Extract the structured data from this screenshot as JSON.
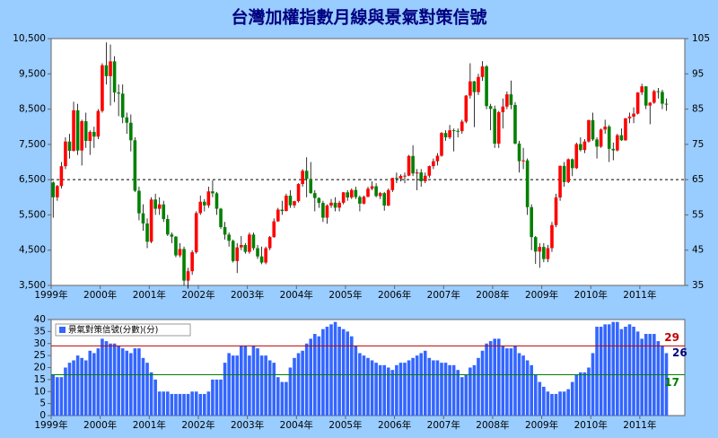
{
  "chart_data": [
    {
      "type": "candlestick",
      "title": "台灣加權指數月線與景氣對策信號",
      "up_color": "#ff0000",
      "down_color": "#008000",
      "x_labels": [
        "1999年",
        "2000年",
        "2001年",
        "2002年",
        "2003年",
        "2004年",
        "2005年",
        "2006年",
        "2007年",
        "2008年",
        "2009年",
        "2010年",
        "2011年"
      ],
      "ylim": [
        3500,
        10500
      ],
      "yticks": [
        {
          "value": 3500,
          "label": "3,500"
        },
        {
          "value": 4500,
          "label": "4,500"
        },
        {
          "value": 5500,
          "label": "5,500"
        },
        {
          "value": 6500,
          "label": "6,500"
        },
        {
          "value": 7500,
          "label": "7,500"
        },
        {
          "value": 8500,
          "label": "8,500"
        },
        {
          "value": 9500,
          "label": "9,500"
        },
        {
          "value": 10500,
          "label": "10,500"
        }
      ],
      "y2lim": [
        35,
        105
      ],
      "y2ticks": [
        35,
        45,
        55,
        65,
        75,
        85,
        95,
        105
      ],
      "hline": 6500,
      "open": [
        6418,
        5999,
        6318,
        6881,
        7581,
        7316,
        8467,
        7326,
        8157,
        7598,
        7854,
        7720,
        8448,
        9744,
        9435,
        9854,
        8970,
        8939,
        8265,
        8114,
        7616,
        6185,
        5544,
        5256,
        4739,
        5936,
        5674,
        5797,
        5382,
        4944,
        4883,
        4352,
        4533,
        3636,
        3903,
        4441,
        5551,
        5873,
        5770,
        6167,
        6113,
        5675,
        5153,
        4941,
        4764,
        4191,
        4579,
        4646,
        4452,
        4942,
        4556,
        4322,
        4148,
        4556,
        4872,
        5318,
        5650,
        5611,
        6045,
        5772,
        5890,
        6375,
        6751,
        6522,
        6118,
        5978,
        5840,
        5420,
        5765,
        5846,
        5705,
        5845,
        6140,
        5994,
        6207,
        6006,
        5819,
        6012,
        6242,
        6312,
        6034,
        6118,
        5764,
        6203,
        6548,
        6532,
        6605,
        6613,
        7171,
        6675,
        6704,
        6456,
        6611,
        6883,
        7021,
        7178,
        7823,
        7699,
        7901,
        7884,
        7875,
        8145,
        8883,
        9287,
        8982,
        9411,
        9711,
        8586,
        8506,
        7521,
        8412,
        8572,
        8919,
        8619,
        7523,
        7024,
        7046,
        5719,
        4870,
        4460,
        4591,
        4248,
        4557,
        5211,
        5993,
        6890,
        6432,
        7078,
        6826,
        7509,
        7340,
        7582,
        8188,
        7640,
        7436,
        7920,
        8004,
        7374,
        7329,
        7760,
        7616,
        8238,
        8287,
        8372,
        8973,
        9145,
        8600,
        8683,
        9008,
        8988,
        8653
      ],
      "high": [
        6450,
        6350,
        7000,
        7700,
        7800,
        8710,
        8650,
        8200,
        8400,
        7900,
        8000,
        8500,
        9800,
        10393,
        10330,
        10000,
        9200,
        9200,
        8400,
        8350,
        7700,
        6300,
        5800,
        5400,
        6000,
        6100,
        6000,
        5900,
        5500,
        5000,
        4900,
        4700,
        4600,
        4000,
        4500,
        5600,
        6050,
        5950,
        6300,
        6480,
        6150,
        5700,
        5300,
        5000,
        4800,
        4700,
        4900,
        4700,
        5000,
        5000,
        4650,
        4600,
        4600,
        4900,
        5400,
        5700,
        5900,
        6100,
        6200,
        5900,
        6400,
        6800,
        7135,
        7000,
        6200,
        6000,
        5900,
        5800,
        5950,
        6000,
        5900,
        6150,
        6200,
        6250,
        6300,
        6050,
        6050,
        6300,
        6450,
        6400,
        6150,
        6150,
        6250,
        6550,
        6700,
        6650,
        6700,
        7200,
        7476,
        6800,
        6800,
        6700,
        6900,
        7100,
        7250,
        7850,
        7900,
        8050,
        7950,
        7950,
        8200,
        8900,
        9800,
        9300,
        9500,
        9859,
        9750,
        8650,
        8600,
        8450,
        8800,
        9000,
        9309,
        8700,
        7600,
        7400,
        7100,
        5800,
        4900,
        4700,
        4700,
        4650,
        5300,
        6100,
        6900,
        7000,
        7100,
        7100,
        7550,
        7700,
        7650,
        8200,
        8400,
        7700,
        7950,
        8200,
        8050,
        7550,
        7800,
        7950,
        8250,
        8400,
        8550,
        8980,
        9220,
        9150,
        8700,
        9050,
        9100,
        9050,
        8800
      ],
      "low": [
        5420,
        5900,
        6250,
        6800,
        7100,
        7300,
        7200,
        6900,
        7400,
        7200,
        7400,
        7650,
        8400,
        9200,
        8600,
        8700,
        8300,
        8100,
        7800,
        7300,
        6150,
        5350,
        5050,
        4555,
        4700,
        5500,
        5500,
        5300,
        4900,
        4700,
        4300,
        4300,
        3500,
        3411,
        3800,
        4400,
        5500,
        5600,
        5700,
        6000,
        5500,
        5100,
        4800,
        4600,
        4150,
        3850,
        4500,
        4400,
        4400,
        4500,
        4250,
        4100,
        4100,
        4500,
        4850,
        5300,
        5500,
        5600,
        5700,
        5700,
        5850,
        6300,
        6000,
        6100,
        5600,
        5700,
        5300,
        5250,
        5700,
        5600,
        5600,
        5800,
        5900,
        5950,
        5950,
        5600,
        5800,
        6000,
        6200,
        6000,
        5950,
        5620,
        5750,
        6150,
        6400,
        6450,
        6400,
        6600,
        6600,
        6200,
        6300,
        6400,
        6550,
        6800,
        6900,
        7150,
        7600,
        7650,
        7300,
        7700,
        7800,
        8100,
        8800,
        7990,
        8900,
        9300,
        8500,
        7900,
        7400,
        7400,
        7950,
        8500,
        8500,
        7500,
        6700,
        6800,
        5500,
        4500,
        4110,
        4000,
        4160,
        4160,
        4450,
        5150,
        5900,
        6300,
        6400,
        6600,
        6800,
        7300,
        7250,
        7550,
        7600,
        7100,
        7400,
        7800,
        7000,
        7050,
        7300,
        7600,
        7600,
        8100,
        8100,
        8350,
        8900,
        8500,
        8070,
        8650,
        8800,
        8500,
        8450
      ],
      "close": [
        5999,
        6318,
        6881,
        7581,
        7316,
        8467,
        7326,
        8157,
        7598,
        7854,
        7720,
        8448,
        9744,
        9435,
        9854,
        8970,
        8939,
        8265,
        8114,
        7616,
        6185,
        5544,
        5256,
        4739,
        5936,
        5674,
        5797,
        5382,
        4944,
        4883,
        4352,
        4533,
        3636,
        3903,
        4441,
        5551,
        5873,
        5770,
        6167,
        6113,
        5675,
        5153,
        4941,
        4764,
        4191,
        4579,
        4646,
        4452,
        4942,
        4556,
        4322,
        4148,
        4556,
        4872,
        5318,
        5650,
        5611,
        6045,
        5772,
        5890,
        6375,
        6751,
        6522,
        6118,
        5978,
        5840,
        5420,
        5765,
        5846,
        5705,
        5845,
        6140,
        5994,
        6207,
        6006,
        5819,
        6012,
        6242,
        6312,
        6034,
        6118,
        5764,
        6203,
        6548,
        6532,
        6605,
        6613,
        7171,
        6675,
        6704,
        6456,
        6611,
        6883,
        7021,
        7178,
        7823,
        7699,
        7901,
        7884,
        7875,
        8145,
        8883,
        9287,
        8982,
        9411,
        9711,
        8586,
        8506,
        7521,
        8412,
        8572,
        8919,
        8619,
        7523,
        7024,
        7046,
        5719,
        4870,
        4460,
        4591,
        4248,
        4557,
        5211,
        5993,
        6890,
        6432,
        7078,
        6826,
        7509,
        7340,
        7582,
        8188,
        7640,
        7436,
        7920,
        8004,
        7374,
        7329,
        7760,
        7616,
        8238,
        8287,
        8372,
        8973,
        9145,
        8600,
        8683,
        9008,
        8988,
        8653,
        8644
      ]
    },
    {
      "type": "bar",
      "x_labels": [
        "1999年",
        "2000年",
        "2001年",
        "2002年",
        "2003年",
        "2004年",
        "2005年",
        "2006年",
        "2007年",
        "2008年",
        "2009年",
        "2010年",
        "2011年"
      ],
      "ylim": [
        0,
        40
      ],
      "yticks": [
        0,
        5,
        10,
        15,
        20,
        25,
        30,
        35,
        40
      ],
      "hlines": [
        {
          "value": 29,
          "color": "#c00000"
        },
        {
          "value": 17,
          "color": "#008000"
        }
      ],
      "series": [
        {
          "name": "景氣對策信號(分數)(分)",
          "color": "#3366ff",
          "values": [
            17,
            16,
            16,
            20,
            22,
            23,
            25,
            24,
            23,
            27,
            26,
            28,
            32,
            31,
            30,
            30,
            29,
            28,
            27,
            26,
            28,
            28,
            24,
            22,
            18,
            15,
            10,
            10,
            10,
            9,
            9,
            9,
            9,
            9,
            10,
            10,
            9,
            9,
            10,
            15,
            15,
            15,
            22,
            26,
            25,
            25,
            29,
            29,
            25,
            29,
            28,
            25,
            25,
            23,
            22,
            16,
            14,
            14,
            20,
            24,
            26,
            27,
            30,
            32,
            34,
            33,
            36,
            37,
            38,
            39,
            37,
            36,
            35,
            33,
            29,
            26,
            25,
            24,
            23,
            22,
            21,
            21,
            20,
            19,
            21,
            22,
            22,
            23,
            24,
            25,
            26,
            27,
            24,
            23,
            23,
            22,
            22,
            21,
            21,
            19,
            16,
            17,
            20,
            21,
            24,
            27,
            30,
            31,
            32,
            32,
            29,
            28,
            28,
            29,
            26,
            25,
            23,
            21,
            17,
            14,
            12,
            10,
            9,
            9,
            10,
            10,
            11,
            14,
            17,
            18,
            18,
            20,
            26,
            37,
            37,
            38,
            38,
            39,
            39,
            36,
            37,
            38,
            37,
            35,
            32,
            34,
            34,
            34,
            31,
            29,
            26
          ]
        }
      ]
    }
  ]
}
